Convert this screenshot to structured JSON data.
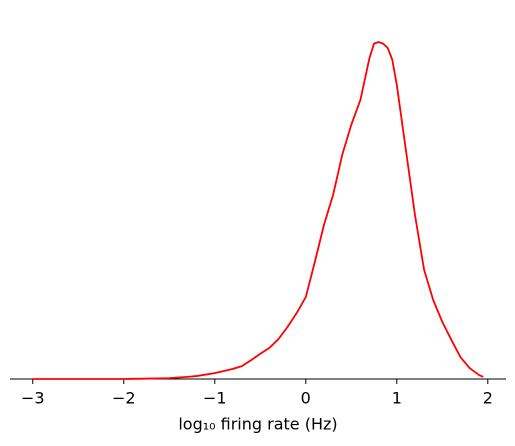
{
  "chart_data": {
    "type": "line",
    "xlabel": "log₁₀ firing rate (Hz)",
    "x": [
      -3,
      -2,
      -1.7,
      -1.5,
      -1.3,
      -1.2,
      -1.0,
      -0.8,
      -0.7,
      -0.6,
      -0.5,
      -0.4,
      -0.3,
      -0.2,
      -0.1,
      0,
      0.1,
      0.2,
      0.3,
      0.4,
      0.5,
      0.6,
      0.7,
      0.75,
      0.8,
      0.85,
      0.9,
      0.95,
      1.0,
      1.1,
      1.2,
      1.3,
      1.4,
      1.5,
      1.6,
      1.7,
      1.8,
      1.9,
      1.95
    ],
    "values": [
      0,
      0,
      0.001,
      0.002,
      0.005,
      0.007,
      0.014,
      0.024,
      0.031,
      0.045,
      0.06,
      0.074,
      0.095,
      0.124,
      0.157,
      0.195,
      0.279,
      0.367,
      0.438,
      0.533,
      0.605,
      0.664,
      0.764,
      0.798,
      0.802,
      0.798,
      0.788,
      0.76,
      0.7,
      0.545,
      0.39,
      0.26,
      0.188,
      0.136,
      0.093,
      0.052,
      0.026,
      0.01,
      0.005
    ],
    "color": "#ff0000",
    "xlim": [
      -3.25,
      2.2
    ],
    "ylim": [
      0,
      0.84
    ],
    "xticks": [
      {
        "value": -3,
        "label": "−3"
      },
      {
        "value": -2,
        "label": "−2"
      },
      {
        "value": -1,
        "label": "−1"
      },
      0,
      1,
      2
    ]
  }
}
